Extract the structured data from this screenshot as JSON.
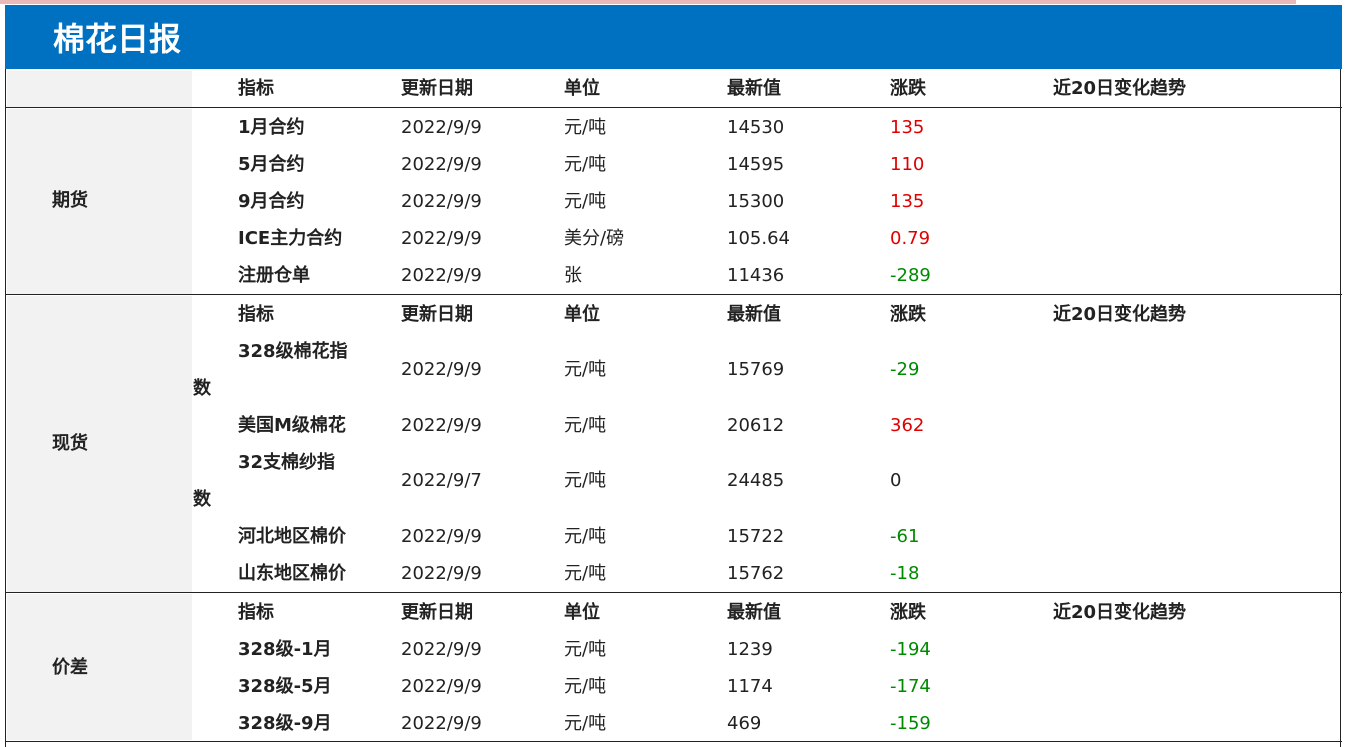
{
  "title": "棉花日报",
  "colors": {
    "header_bg": "#0070c0",
    "side_bg": "#f2f2f2",
    "up": "#e00000",
    "down": "#008a00"
  },
  "header": {
    "c1": "指标",
    "c2": "更新日期",
    "c3": "单位",
    "c4": "最新值",
    "c5": "涨跌",
    "c6": "近20日变化趋势"
  },
  "sections": [
    {
      "name": "期货",
      "header": {
        "c1": "指标",
        "c2": "更新日期",
        "c3": "单位",
        "c4": "最新值",
        "c5": "涨跌",
        "c6": "近20日变化趋势"
      },
      "rows": [
        {
          "name": "1月合约",
          "date": "2022/9/9",
          "unit": "元/吨",
          "value": "14530",
          "change": "135",
          "dir": "up"
        },
        {
          "name": "5月合约",
          "date": "2022/9/9",
          "unit": "元/吨",
          "value": "14595",
          "change": "110",
          "dir": "up"
        },
        {
          "name": "9月合约",
          "date": "2022/9/9",
          "unit": "元/吨",
          "value": "15300",
          "change": "135",
          "dir": "up"
        },
        {
          "name": "ICE主力合约",
          "date": "2022/9/9",
          "unit": "美分/磅",
          "value": "105.64",
          "change": "0.79",
          "dir": "up"
        },
        {
          "name": "注册仓单",
          "date": "2022/9/9",
          "unit": "张",
          "value": "11436",
          "change": "-289",
          "dir": "down"
        }
      ]
    },
    {
      "name": "现货",
      "header": {
        "c1": "指标",
        "c2": "更新日期",
        "c3": "单位",
        "c4": "最新值",
        "c5": "涨跌",
        "c6": "近20日变化趋势"
      },
      "rows": [
        {
          "name_line1": "328级棉花指",
          "name_line2": "数",
          "date": "2022/9/9",
          "unit": "元/吨",
          "value": "15769",
          "change": "-29",
          "dir": "down"
        },
        {
          "name": "美国M级棉花",
          "date": "2022/9/9",
          "unit": "元/吨",
          "value": "20612",
          "change": "362",
          "dir": "up"
        },
        {
          "name_line1": "32支棉纱指",
          "name_line2": "数",
          "date": "2022/9/7",
          "unit": "元/吨",
          "value": "24485",
          "change": "0",
          "dir": "flat"
        },
        {
          "name": "河北地区棉价",
          "date": "2022/9/9",
          "unit": "元/吨",
          "value": "15722",
          "change": "-61",
          "dir": "down"
        },
        {
          "name": "山东地区棉价",
          "date": "2022/9/9",
          "unit": "元/吨",
          "value": "15762",
          "change": "-18",
          "dir": "down"
        }
      ]
    },
    {
      "name": "价差",
      "header": {
        "c1": "指标",
        "c2": "更新日期",
        "c3": "单位",
        "c4": "最新值",
        "c5": "涨跌",
        "c6": "近20日变化趋势"
      },
      "rows": [
        {
          "name": "328级-1月",
          "date": "2022/9/9",
          "unit": "元/吨",
          "value": "1239",
          "change": "-194",
          "dir": "down"
        },
        {
          "name": "328级-5月",
          "date": "2022/9/9",
          "unit": "元/吨",
          "value": "1174",
          "change": "-174",
          "dir": "down"
        },
        {
          "name": "328级-9月",
          "date": "2022/9/9",
          "unit": "元/吨",
          "value": "469",
          "change": "-159",
          "dir": "down"
        }
      ]
    }
  ]
}
